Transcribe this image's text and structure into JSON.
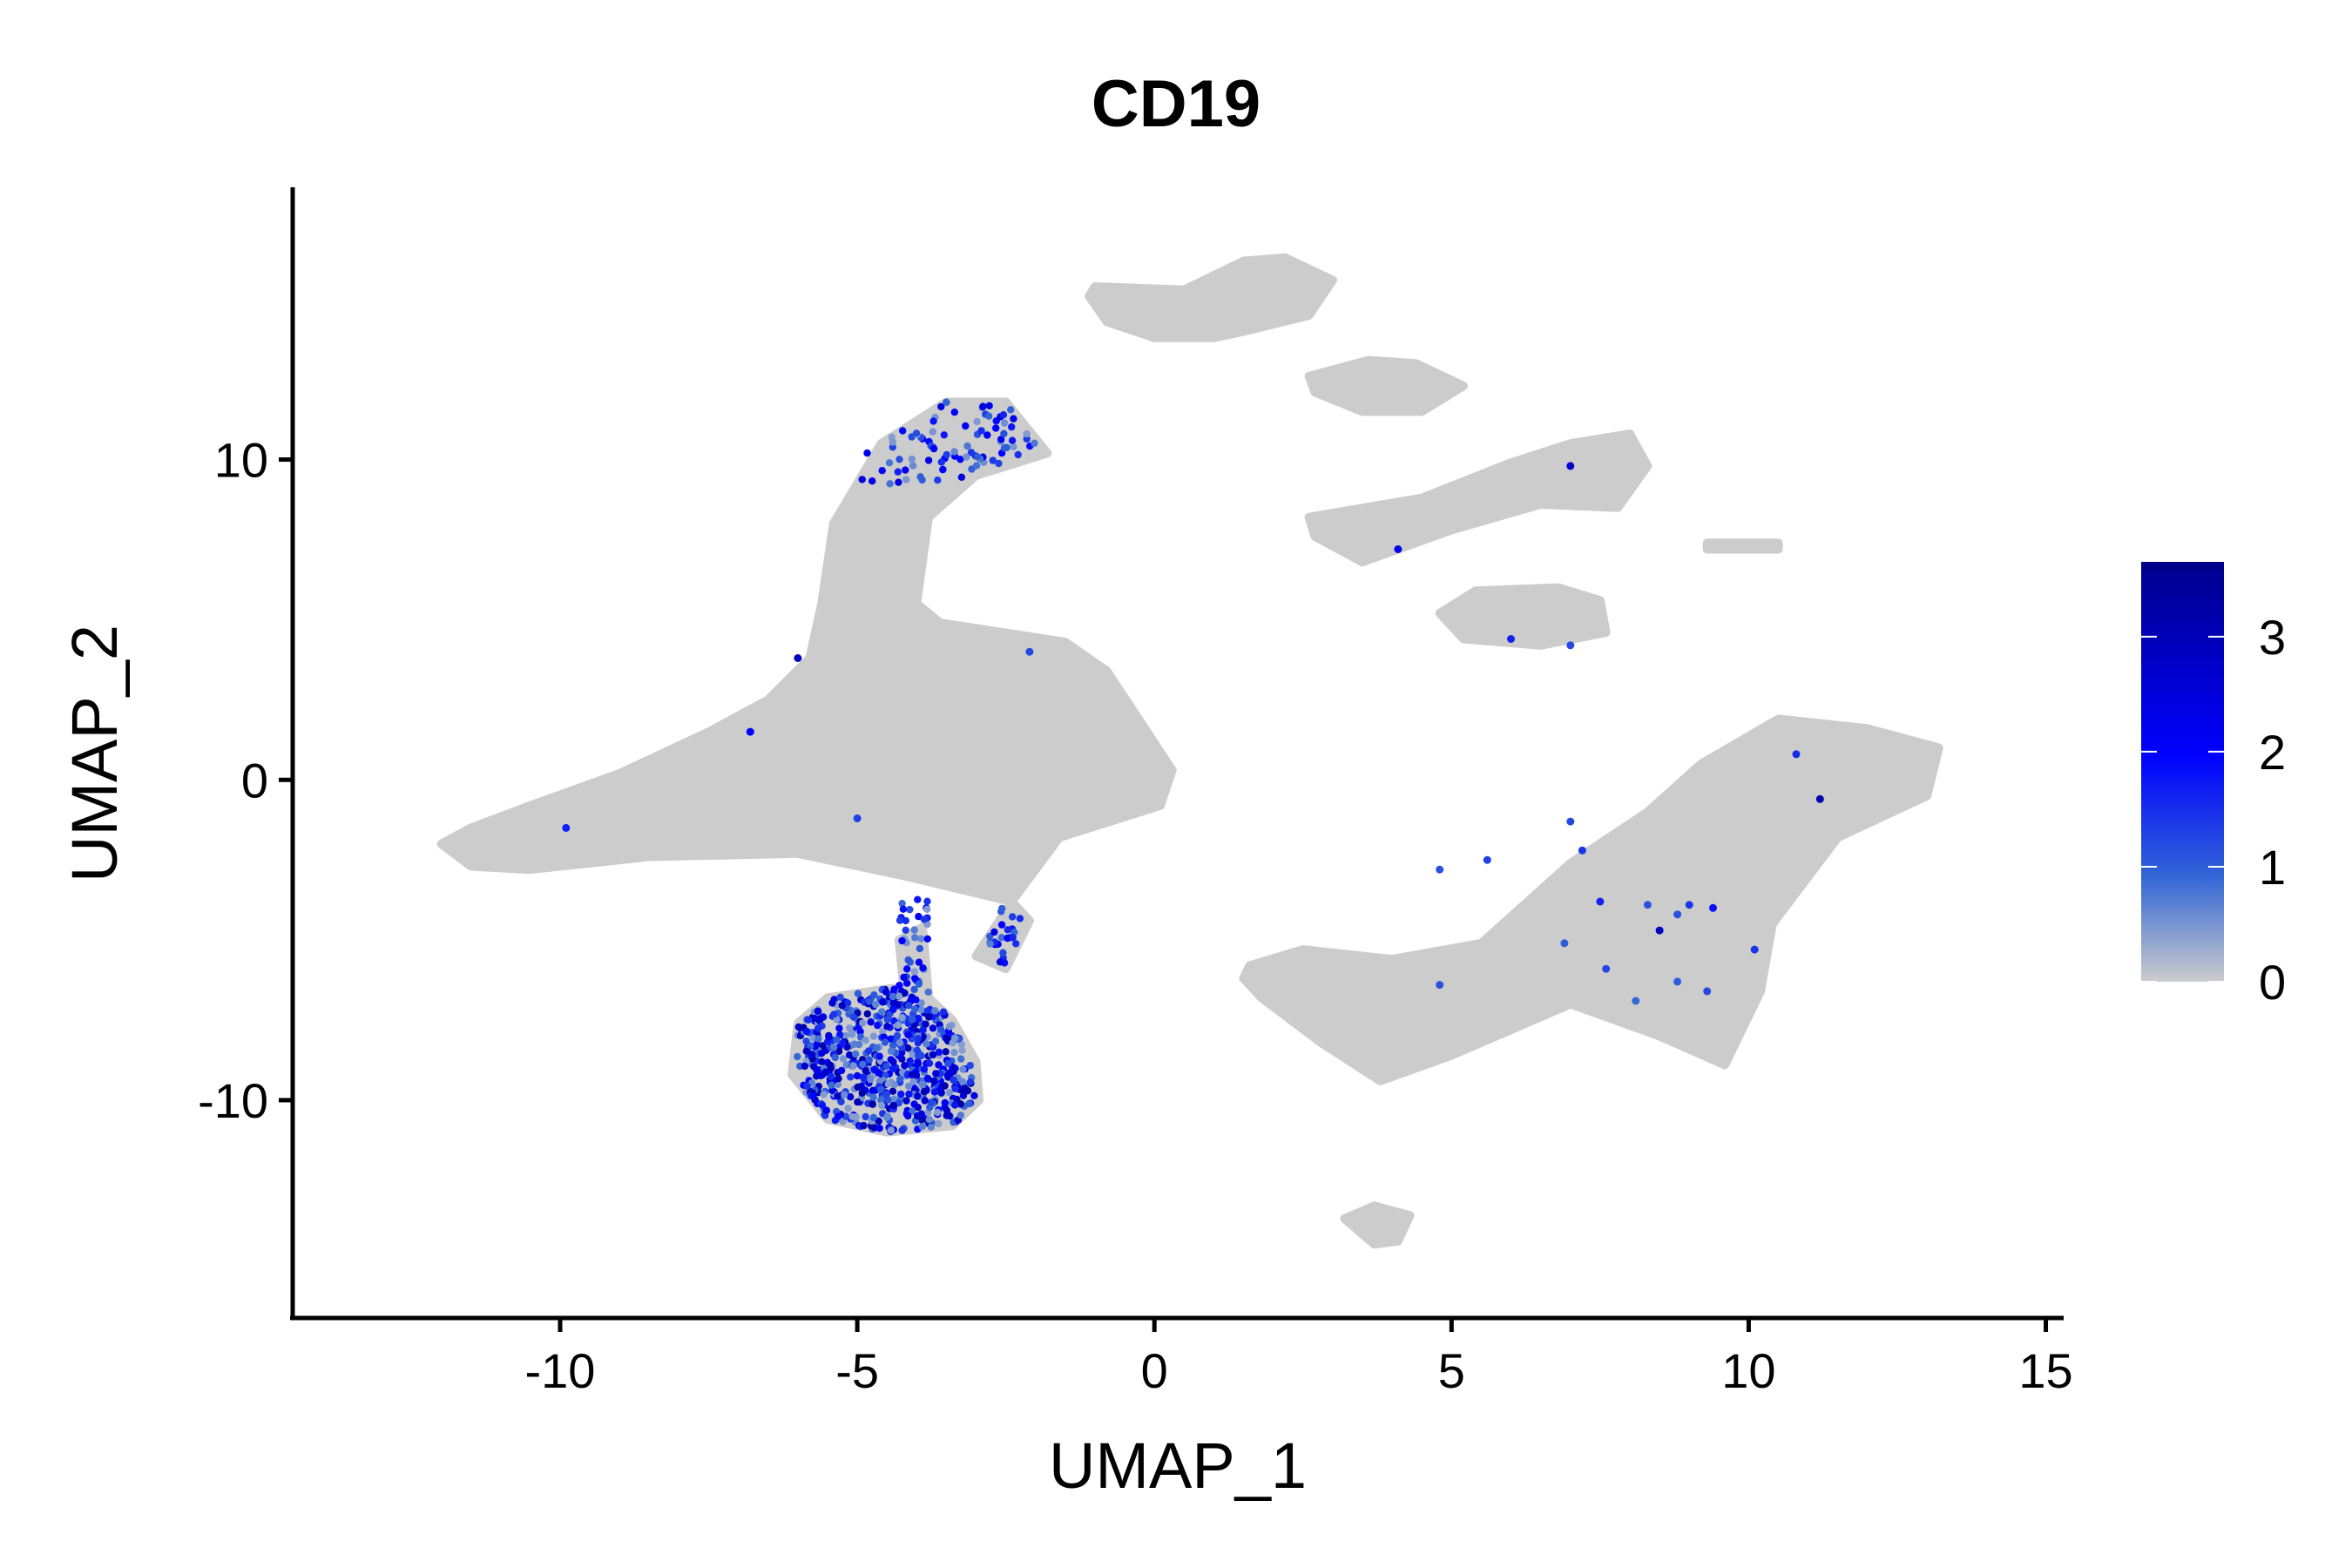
{
  "chart_data": {
    "type": "scatter",
    "title": "CD19",
    "xlabel": "UMAP_1",
    "ylabel": "UMAP_2",
    "xlim": [
      -14.5,
      15.3
    ],
    "ylim": [
      -16.8,
      18.5
    ],
    "xticks": [
      -10,
      -5,
      0,
      5,
      10,
      15
    ],
    "xtick_labels": [
      "-10",
      "-5",
      "0",
      "5",
      "10",
      "15"
    ],
    "yticks": [
      -10,
      0,
      10
    ],
    "ytick_labels": [
      "-10",
      "0",
      "10"
    ],
    "grid": false,
    "legend": {
      "placement": "right",
      "type": "colorbar",
      "range": [
        0,
        3.65
      ],
      "ticks": [
        0,
        1,
        2,
        3
      ],
      "tick_labels": [
        "0",
        "1",
        "2",
        "3"
      ],
      "colors": [
        "#cccccc",
        "#0000ff",
        "#00008b"
      ]
    },
    "base_color": "#cccccc",
    "background_clusters": [
      {
        "polygon": [
          [
            -12,
            -2
          ],
          [
            -11.5,
            -1.5
          ],
          [
            -10.5,
            -0.8
          ],
          [
            -9,
            0.2
          ],
          [
            -7.5,
            1.5
          ],
          [
            -6.5,
            2.5
          ],
          [
            -5.8,
            3.8
          ],
          [
            -5.6,
            5.5
          ],
          [
            -5.4,
            8
          ],
          [
            -4.6,
            10.5
          ],
          [
            -3.5,
            11.8
          ],
          [
            -2.5,
            11.8
          ],
          [
            -1.8,
            10.2
          ],
          [
            -3,
            9.5
          ],
          [
            -3.8,
            8.2
          ],
          [
            -4,
            5.5
          ],
          [
            -3.6,
            4.9
          ],
          [
            -1.5,
            4.3
          ],
          [
            -0.8,
            3.4
          ],
          [
            -0.3,
            2
          ],
          [
            0.3,
            0.3
          ],
          [
            0.1,
            -0.8
          ],
          [
            -1.6,
            -1.8
          ],
          [
            -2.4,
            -3.8
          ],
          [
            -4.2,
            -3
          ],
          [
            -6,
            -2.3
          ],
          [
            -8.5,
            -2.4
          ],
          [
            -10.5,
            -2.8
          ],
          [
            -11.5,
            -2.7
          ]
        ]
      },
      {
        "polygon": [
          [
            -6,
            -7.6
          ],
          [
            -5.5,
            -6.8
          ],
          [
            -4.4,
            -6.5
          ],
          [
            -3.8,
            -6.8
          ],
          [
            -3.4,
            -7.5
          ],
          [
            -3,
            -8.8
          ],
          [
            -2.95,
            -10
          ],
          [
            -3.4,
            -10.8
          ],
          [
            -4.5,
            -11
          ],
          [
            -5.5,
            -10.6
          ],
          [
            -6.1,
            -9.2
          ]
        ]
      },
      {
        "polygon": [
          [
            -4.3,
            -5
          ],
          [
            -3.9,
            -4.6
          ],
          [
            -3.8,
            -6.7
          ],
          [
            -4.2,
            -6.8
          ]
        ]
      },
      {
        "polygon": [
          [
            -3.0,
            -5.5
          ],
          [
            -2.4,
            -3.8
          ],
          [
            -2.1,
            -4.4
          ],
          [
            -2.5,
            -5.9
          ]
        ]
      },
      {
        "polygon": [
          [
            1.6,
            -5.8
          ],
          [
            2.5,
            -5.3
          ],
          [
            4,
            -5.6
          ],
          [
            5.5,
            -5.1
          ],
          [
            7,
            -2.6
          ],
          [
            8.3,
            -1
          ],
          [
            9.2,
            0.5
          ],
          [
            10.5,
            1.9
          ],
          [
            12,
            1.6
          ],
          [
            13.2,
            1
          ],
          [
            13,
            -0.5
          ],
          [
            11.5,
            -1.8
          ],
          [
            10.4,
            -4.5
          ],
          [
            10.2,
            -6.6
          ],
          [
            9.6,
            -8.9
          ],
          [
            8.5,
            -8
          ],
          [
            7,
            -7
          ],
          [
            5,
            -8.6
          ],
          [
            3.8,
            -9.4
          ],
          [
            2.8,
            -8.2
          ],
          [
            1.8,
            -6.8
          ],
          [
            1.5,
            -6.2
          ]
        ]
      },
      {
        "polygon": [
          [
            -1,
            15.4
          ],
          [
            0.5,
            15.3
          ],
          [
            1.5,
            16.2
          ],
          [
            2.2,
            16.3
          ],
          [
            3,
            15.6
          ],
          [
            2.6,
            14.5
          ],
          [
            1.5,
            14
          ],
          [
            1,
            13.8
          ],
          [
            0,
            13.8
          ],
          [
            -0.8,
            14.3
          ],
          [
            -1.1,
            15.1
          ]
        ]
      },
      {
        "polygon": [
          [
            2.6,
            12.6
          ],
          [
            3.6,
            13.1
          ],
          [
            4.4,
            13
          ],
          [
            5.2,
            12.3
          ],
          [
            4.5,
            11.5
          ],
          [
            3.5,
            11.5
          ],
          [
            2.7,
            12.1
          ]
        ]
      },
      {
        "polygon": [
          [
            2.6,
            8.2
          ],
          [
            4.5,
            8.8
          ],
          [
            6,
            9.9
          ],
          [
            7,
            10.5
          ],
          [
            8,
            10.8
          ],
          [
            8.3,
            9.8
          ],
          [
            7.8,
            8.5
          ],
          [
            6.5,
            8.6
          ],
          [
            5,
            7.8
          ],
          [
            3.5,
            6.8
          ],
          [
            2.7,
            7.6
          ]
        ]
      },
      {
        "polygon": [
          [
            4.8,
            5.2
          ],
          [
            5.4,
            5.9
          ],
          [
            6.8,
            6
          ],
          [
            7.5,
            5.6
          ],
          [
            7.6,
            4.6
          ],
          [
            6.5,
            4.2
          ],
          [
            5.2,
            4.4
          ]
        ]
      },
      {
        "polygon": [
          [
            9.3,
            7.4
          ],
          [
            10.5,
            7.4
          ],
          [
            10.5,
            7.2
          ],
          [
            9.3,
            7.2
          ]
        ]
      },
      {
        "polygon": [
          [
            3.2,
            -13.7
          ],
          [
            3.7,
            -13.3
          ],
          [
            4.3,
            -13.6
          ],
          [
            4.1,
            -14.4
          ],
          [
            3.7,
            -14.5
          ]
        ]
      }
    ],
    "expression_regions": [
      {
        "name": "b-cell-cluster",
        "bounds": [
          [
            -6.0,
            -5.2
          ],
          [
            -2.95,
            -6.7
          ],
          [
            -11.0,
            -7.5
          ]
        ],
        "polygon": [
          [
            -6,
            -7.6
          ],
          [
            -5.5,
            -6.8
          ],
          [
            -4.4,
            -6.5
          ],
          [
            -3.8,
            -6.8
          ],
          [
            -3.4,
            -7.5
          ],
          [
            -3,
            -8.8
          ],
          [
            -2.95,
            -10
          ],
          [
            -3.4,
            -10.8
          ],
          [
            -4.5,
            -11
          ],
          [
            -5.5,
            -10.6
          ],
          [
            -6.1,
            -9.2
          ]
        ],
        "count": 620,
        "value_range": [
          0.4,
          3.3
        ]
      },
      {
        "name": "upper-arm",
        "polygon": [
          [
            -4.6,
            10.6
          ],
          [
            -3.5,
            11.8
          ],
          [
            -2.5,
            11.8
          ],
          [
            -1.9,
            10.2
          ],
          [
            -3,
            9.4
          ],
          [
            -4.5,
            9
          ],
          [
            -5.2,
            9.6
          ]
        ],
        "count": 90,
        "value_range": [
          0.4,
          2.5
        ]
      },
      {
        "name": "stream-down",
        "polygon": [
          [
            -4.3,
            -3.8
          ],
          [
            -3.8,
            -3.6
          ],
          [
            -3.8,
            -6.7
          ],
          [
            -4.3,
            -6.8
          ]
        ],
        "count": 40,
        "value_range": [
          0.4,
          2.2
        ]
      },
      {
        "name": "right-arm-bridge",
        "polygon": [
          [
            -2.6,
            -3.9
          ],
          [
            -2.1,
            -4.3
          ],
          [
            -2.5,
            -5.9
          ],
          [
            -2.9,
            -5.4
          ]
        ],
        "count": 25,
        "value_range": [
          0.6,
          2.4
        ]
      }
    ],
    "scattered_points": [
      [
        -6,
        3.8,
        2.8
      ],
      [
        -6.8,
        1.5,
        2.0
      ],
      [
        -9.9,
        -1.5,
        1.6
      ],
      [
        -5,
        -1.2,
        1.3
      ],
      [
        -2.1,
        4,
        1.2
      ],
      [
        7,
        9.8,
        2.7
      ],
      [
        4.1,
        7.2,
        2.2
      ],
      [
        6,
        4.4,
        1.6
      ],
      [
        7,
        4.2,
        1.2
      ],
      [
        5.6,
        -2.5,
        1.3
      ],
      [
        4.8,
        -2.8,
        1.1
      ],
      [
        7,
        -1.3,
        1.2
      ],
      [
        7.2,
        -2.2,
        1.4
      ],
      [
        7.5,
        -3.8,
        1.6
      ],
      [
        8.3,
        -3.9,
        1.1
      ],
      [
        8.5,
        -4.7,
        2.8
      ],
      [
        9,
        -3.9,
        1.4
      ],
      [
        9.4,
        -4,
        1.8
      ],
      [
        8.8,
        -4.2,
        1.1
      ],
      [
        11.2,
        -0.6,
        3.1
      ],
      [
        10.8,
        0.8,
        1.5
      ],
      [
        9.3,
        -6.6,
        1.2
      ],
      [
        8.8,
        -6.3,
        1.0
      ],
      [
        4.8,
        -6.4,
        1.1
      ],
      [
        8.1,
        -6.9,
        0.9
      ],
      [
        7.6,
        -5.9,
        1.2
      ],
      [
        6.9,
        -5.1,
        1.0
      ],
      [
        10.1,
        -5.3,
        1.4
      ]
    ]
  }
}
